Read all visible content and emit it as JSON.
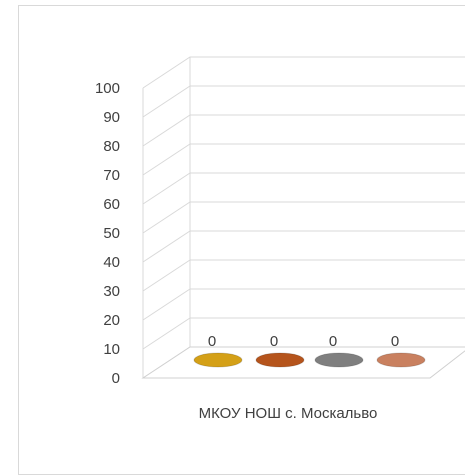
{
  "chart_data": {
    "type": "bar",
    "style": "3d-cylinder",
    "categories": [
      "МКОУ НОШ с. Москальво"
    ],
    "series": [
      {
        "values": [
          0
        ],
        "color": "#d4a017"
      },
      {
        "values": [
          0
        ],
        "color": "#b5541c"
      },
      {
        "values": [
          0
        ],
        "color": "#7f7f7f"
      },
      {
        "values": [
          0
        ],
        "color": "#c9805f"
      }
    ],
    "data_labels": [
      "0",
      "0",
      "0",
      "0"
    ],
    "ylim": [
      0,
      100
    ],
    "yticks": [
      "100",
      "90",
      "80",
      "70",
      "60",
      "50",
      "40",
      "30",
      "20",
      "10",
      "0"
    ],
    "grid": true,
    "title": "",
    "xlabel": "",
    "ylabel": ""
  }
}
